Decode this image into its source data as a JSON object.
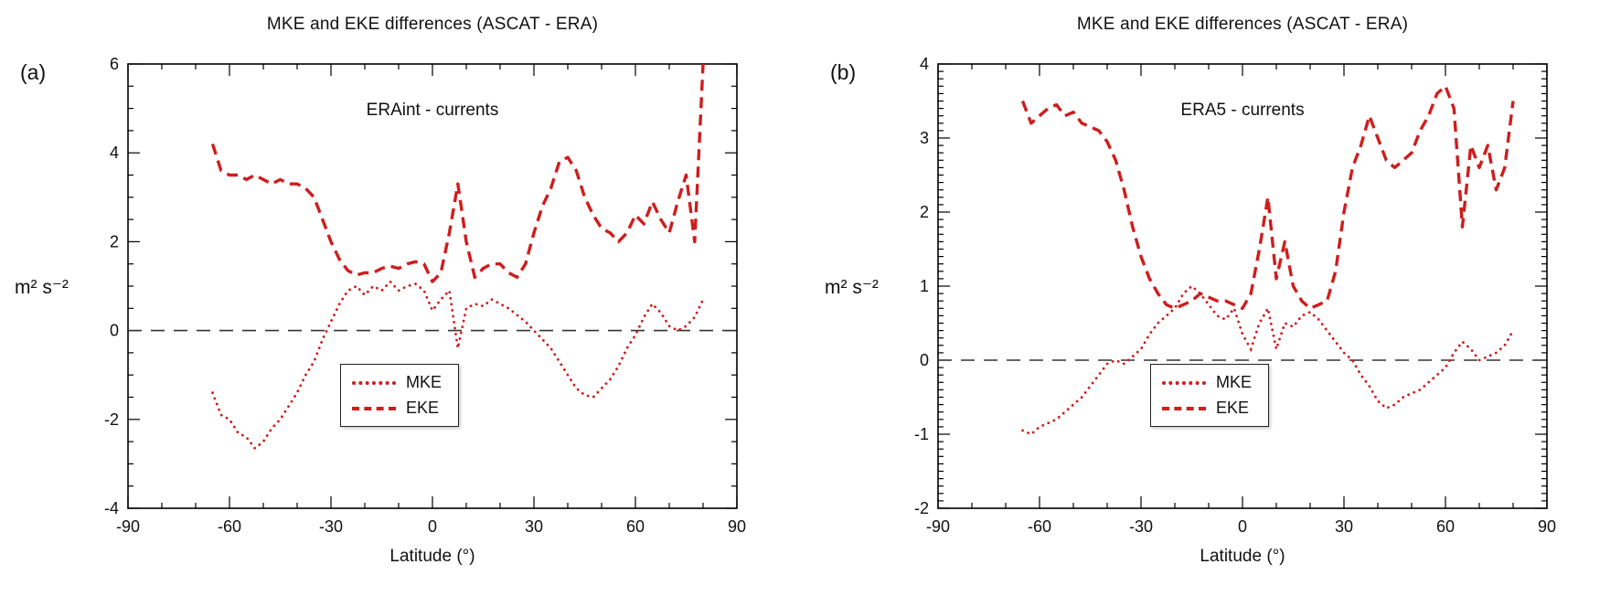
{
  "chart_data": [
    {
      "type": "line",
      "panel_label": "(a)",
      "title": "MKE and EKE differences (ASCAT - ERA)",
      "annotation": "ERAint - currents",
      "xlabel": "Latitude (°)",
      "ylabel": "m² s⁻²",
      "xlim": [
        -90,
        90
      ],
      "ylim": [
        -4,
        6
      ],
      "x_ticks": [
        -90,
        -60,
        -30,
        0,
        30,
        60,
        90
      ],
      "y_ticks": [
        -4,
        -2,
        0,
        2,
        4,
        6
      ],
      "x_minor_step": 10,
      "y_minor_step": 0.5,
      "zero_line": true,
      "grid": false,
      "legend_position": "lower-center",
      "line_color": "#cf1d1d",
      "x": [
        -65,
        -62.5,
        -60,
        -57.5,
        -55,
        -52.5,
        -50,
        -47.5,
        -45,
        -42.5,
        -40,
        -37.5,
        -35,
        -32.5,
        -30,
        -27.5,
        -25,
        -22.5,
        -20,
        -17.5,
        -15,
        -12.5,
        -10,
        -7.5,
        -5,
        -2.5,
        0,
        2.5,
        5,
        7.5,
        10,
        12.5,
        15,
        17.5,
        20,
        22.5,
        25,
        27.5,
        30,
        32.5,
        35,
        37.5,
        40,
        42.5,
        45,
        47.5,
        50,
        52.5,
        55,
        57.5,
        60,
        62.5,
        65,
        67.5,
        70,
        72.5,
        75,
        77.5,
        80
      ],
      "series": [
        {
          "name": "MKE",
          "style": "dotted",
          "values": [
            -1.4,
            -1.9,
            -2.0,
            -2.3,
            -2.4,
            -2.65,
            -2.5,
            -2.2,
            -2.0,
            -1.7,
            -1.4,
            -1.0,
            -0.7,
            -0.2,
            0.2,
            0.6,
            0.9,
            1.0,
            0.8,
            1.0,
            0.9,
            1.1,
            0.9,
            1.0,
            1.05,
            0.9,
            0.45,
            0.7,
            0.9,
            -0.4,
            0.5,
            0.6,
            0.55,
            0.7,
            0.6,
            0.5,
            0.35,
            0.2,
            0.0,
            -0.2,
            -0.4,
            -0.7,
            -1.0,
            -1.3,
            -1.45,
            -1.5,
            -1.3,
            -1.1,
            -0.8,
            -0.4,
            -0.1,
            0.3,
            0.6,
            0.4,
            0.1,
            0.0,
            0.1,
            0.3,
            0.7
          ]
        },
        {
          "name": "EKE",
          "style": "dashed",
          "values": [
            4.2,
            3.6,
            3.5,
            3.5,
            3.4,
            3.5,
            3.4,
            3.3,
            3.4,
            3.3,
            3.3,
            3.2,
            3.0,
            2.5,
            2.0,
            1.6,
            1.35,
            1.25,
            1.3,
            1.3,
            1.4,
            1.45,
            1.4,
            1.5,
            1.55,
            1.5,
            1.1,
            1.3,
            2.2,
            3.3,
            2.0,
            1.2,
            1.4,
            1.5,
            1.5,
            1.3,
            1.2,
            1.5,
            2.2,
            2.8,
            3.2,
            3.8,
            3.9,
            3.6,
            3.0,
            2.6,
            2.3,
            2.2,
            2.0,
            2.2,
            2.6,
            2.4,
            2.9,
            2.5,
            2.2,
            2.9,
            3.5,
            2.0,
            6.0
          ]
        }
      ]
    },
    {
      "type": "line",
      "panel_label": "(b)",
      "title": "MKE and EKE differences (ASCAT - ERA)",
      "annotation": "ERA5 - currents",
      "xlabel": "Latitude (°)",
      "ylabel": "m² s⁻²",
      "xlim": [
        -90,
        90
      ],
      "ylim": [
        -2,
        4
      ],
      "x_ticks": [
        -90,
        -60,
        -30,
        0,
        30,
        60,
        90
      ],
      "y_ticks": [
        -2,
        -1,
        0,
        1,
        2,
        3,
        4
      ],
      "x_minor_step": 10,
      "y_minor_step": 0.1,
      "zero_line": true,
      "grid": false,
      "legend_position": "lower-center",
      "line_color": "#cf1d1d",
      "x": [
        -65,
        -62.5,
        -60,
        -57.5,
        -55,
        -52.5,
        -50,
        -47.5,
        -45,
        -42.5,
        -40,
        -37.5,
        -35,
        -32.5,
        -30,
        -27.5,
        -25,
        -22.5,
        -20,
        -17.5,
        -15,
        -12.5,
        -10,
        -7.5,
        -5,
        -2.5,
        0,
        2.5,
        5,
        7.5,
        10,
        12.5,
        15,
        17.5,
        20,
        22.5,
        25,
        27.5,
        30,
        32.5,
        35,
        37.5,
        40,
        42.5,
        45,
        47.5,
        50,
        52.5,
        55,
        57.5,
        60,
        62.5,
        65,
        67.5,
        70,
        72.5,
        75,
        77.5,
        80
      ],
      "series": [
        {
          "name": "MKE",
          "style": "dotted",
          "values": [
            -0.95,
            -1.0,
            -0.9,
            -0.85,
            -0.8,
            -0.7,
            -0.6,
            -0.5,
            -0.35,
            -0.2,
            -0.05,
            0.0,
            -0.05,
            0.05,
            0.15,
            0.35,
            0.5,
            0.6,
            0.7,
            0.9,
            1.0,
            0.9,
            0.75,
            0.6,
            0.55,
            0.7,
            0.35,
            0.15,
            0.5,
            0.7,
            0.15,
            0.5,
            0.45,
            0.6,
            0.65,
            0.55,
            0.4,
            0.25,
            0.1,
            0.0,
            -0.2,
            -0.35,
            -0.55,
            -0.65,
            -0.6,
            -0.5,
            -0.45,
            -0.4,
            -0.3,
            -0.2,
            -0.1,
            0.1,
            0.25,
            0.15,
            0.0,
            0.05,
            0.1,
            0.2,
            0.4
          ]
        },
        {
          "name": "EKE",
          "style": "dashed",
          "values": [
            3.5,
            3.2,
            3.3,
            3.4,
            3.45,
            3.3,
            3.35,
            3.2,
            3.15,
            3.1,
            2.95,
            2.7,
            2.3,
            1.8,
            1.4,
            1.1,
            0.9,
            0.75,
            0.7,
            0.75,
            0.8,
            0.9,
            0.85,
            0.8,
            0.8,
            0.75,
            0.7,
            0.9,
            1.5,
            2.2,
            1.1,
            1.6,
            1.0,
            0.8,
            0.7,
            0.75,
            0.8,
            1.2,
            2.0,
            2.6,
            2.9,
            3.3,
            3.0,
            2.7,
            2.6,
            2.7,
            2.8,
            3.1,
            3.3,
            3.6,
            3.7,
            3.4,
            1.8,
            2.9,
            2.6,
            2.9,
            2.3,
            2.6,
            3.5
          ]
        }
      ]
    }
  ]
}
